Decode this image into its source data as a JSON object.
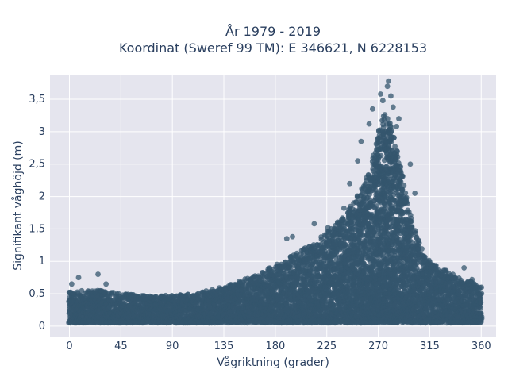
{
  "chart_data": {
    "type": "scatter",
    "title": "År 1979 - 2019",
    "subtitle": "Koordinat (Sweref 99 TM): E 346621, N 6228153",
    "xlabel": "Vågriktning (grader)",
    "ylabel": "Signifikant våghöjd (m)",
    "xlim": [
      -17,
      373
    ],
    "ylim": [
      -0.16,
      3.88
    ],
    "xticks": [
      0,
      45,
      90,
      135,
      180,
      225,
      270,
      315,
      360
    ],
    "yticks": [
      0,
      0.5,
      1,
      1.5,
      2,
      2.5,
      3,
      3.5
    ],
    "xtick_labels": [
      "0",
      "45",
      "90",
      "135",
      "180",
      "225",
      "270",
      "315",
      "360"
    ],
    "ytick_labels": [
      "0",
      "0,5",
      "1",
      "1,5",
      "2",
      "2,5",
      "3",
      "3,5"
    ],
    "grid": true,
    "marker_color": "#34566e",
    "plot_background": "#e5e5ee",
    "envelope": {
      "direction": [
        0,
        15,
        30,
        45,
        60,
        75,
        90,
        105,
        120,
        135,
        150,
        165,
        180,
        195,
        210,
        225,
        240,
        250,
        260,
        265,
        270,
        275,
        280,
        285,
        290,
        295,
        300,
        310,
        320,
        330,
        340,
        350,
        360
      ],
      "max_height": [
        0.55,
        0.55,
        0.55,
        0.5,
        0.48,
        0.47,
        0.48,
        0.5,
        0.55,
        0.62,
        0.7,
        0.8,
        0.95,
        1.1,
        1.25,
        1.45,
        1.7,
        1.95,
        2.3,
        2.6,
        3.0,
        3.3,
        3.2,
        2.9,
        2.4,
        2.0,
        1.6,
        1.1,
        0.95,
        0.85,
        0.75,
        0.7,
        0.6
      ]
    },
    "outliers": [
      {
        "x": 2,
        "y": 0.65
      },
      {
        "x": 8,
        "y": 0.75
      },
      {
        "x": 25,
        "y": 0.8
      },
      {
        "x": 32,
        "y": 0.65
      },
      {
        "x": 265,
        "y": 3.35
      },
      {
        "x": 272,
        "y": 3.58
      },
      {
        "x": 274,
        "y": 3.48
      },
      {
        "x": 278,
        "y": 3.7
      },
      {
        "x": 279,
        "y": 3.78
      },
      {
        "x": 281,
        "y": 3.55
      },
      {
        "x": 283,
        "y": 3.38
      },
      {
        "x": 286,
        "y": 3.08
      },
      {
        "x": 288,
        "y": 3.2
      },
      {
        "x": 255,
        "y": 2.85
      },
      {
        "x": 262,
        "y": 3.12
      },
      {
        "x": 245,
        "y": 2.2
      },
      {
        "x": 252,
        "y": 2.55
      },
      {
        "x": 240,
        "y": 1.82
      },
      {
        "x": 298,
        "y": 2.5
      },
      {
        "x": 302,
        "y": 2.05
      },
      {
        "x": 195,
        "y": 1.38
      },
      {
        "x": 190,
        "y": 1.35
      },
      {
        "x": 214,
        "y": 1.58
      },
      {
        "x": 226,
        "y": 1.52
      },
      {
        "x": 345,
        "y": 0.9
      },
      {
        "x": 352,
        "y": 0.72
      }
    ]
  }
}
